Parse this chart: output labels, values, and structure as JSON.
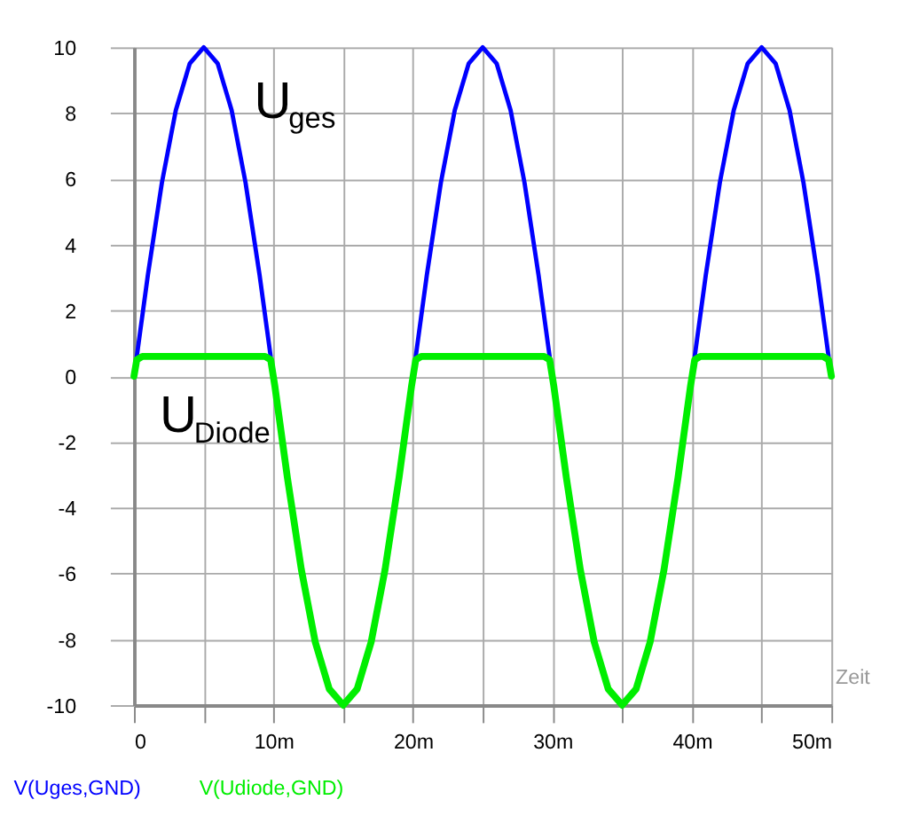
{
  "chart_data": {
    "type": "line",
    "xlabel": "Zeit",
    "xlim": [
      0,
      50
    ],
    "ylim": [
      -10,
      10
    ],
    "xticks": [
      0,
      {
        "value": 5,
        "label": null
      },
      {
        "value": 10,
        "label": "10m"
      },
      {
        "value": 15,
        "label": null
      },
      {
        "value": 20,
        "label": "20m"
      },
      {
        "value": 25,
        "label": null
      },
      {
        "value": 30,
        "label": "30m"
      },
      {
        "value": 35,
        "label": null
      },
      {
        "value": 40,
        "label": "40m"
      },
      {
        "value": 45,
        "label": null
      },
      {
        "value": 50,
        "label": "50m"
      }
    ],
    "yticks": [
      -10,
      -8,
      -6,
      -4,
      -2,
      0,
      2,
      4,
      6,
      8,
      10
    ],
    "grid": true,
    "legend": "bottom",
    "marker": "none",
    "line_style": "solid",
    "annotations": [
      "U$_{ges}$",
      "U$_{Diode}$"
    ],
    "series": [
      {
        "name": "V(Uges,GND)",
        "color": "#0000ff",
        "x": [
          0.2,
          1,
          2,
          3,
          4,
          5,
          6,
          7,
          8,
          9,
          9.8,
          10.2,
          20.2,
          21,
          22,
          23,
          24,
          25,
          26,
          27,
          28,
          29,
          29.8,
          30.2,
          40.2,
          41,
          42,
          43,
          44,
          45,
          46,
          47,
          48,
          49,
          49.8
        ],
        "values": [
          0.6,
          3.09,
          5.88,
          8.09,
          9.51,
          10,
          9.51,
          8.09,
          5.88,
          3.09,
          0.6,
          null,
          0.6,
          3.09,
          5.88,
          8.09,
          9.51,
          10,
          9.51,
          8.09,
          5.88,
          3.09,
          0.6,
          null,
          0.6,
          3.09,
          5.88,
          8.09,
          9.51,
          10,
          9.51,
          8.09,
          5.88,
          3.09,
          0.6
        ]
      },
      {
        "name": "V(Udiode,GND)",
        "color": "#00ee00",
        "x": [
          0,
          0.2,
          0.6,
          9.4,
          9.8,
          10.1,
          11,
          12,
          13,
          14,
          15,
          16,
          17,
          18,
          19,
          19.9,
          20.2,
          20.6,
          29.4,
          29.8,
          30.1,
          31,
          32,
          33,
          34,
          35,
          36,
          37,
          38,
          39,
          39.9,
          40.2,
          40.6,
          49.4,
          49.8,
          50
        ],
        "values": [
          0,
          0.5,
          0.6,
          0.6,
          0.5,
          -0.3,
          -3.09,
          -5.88,
          -8.09,
          -9.51,
          -10,
          -9.51,
          -8.09,
          -5.88,
          -3.09,
          -0.3,
          0.5,
          0.6,
          0.6,
          0.5,
          -0.3,
          -3.09,
          -5.88,
          -8.09,
          -9.51,
          -10,
          -9.51,
          -8.09,
          -5.88,
          -3.09,
          -0.3,
          0.5,
          0.6,
          0.6,
          0.5,
          0
        ]
      }
    ]
  }
}
